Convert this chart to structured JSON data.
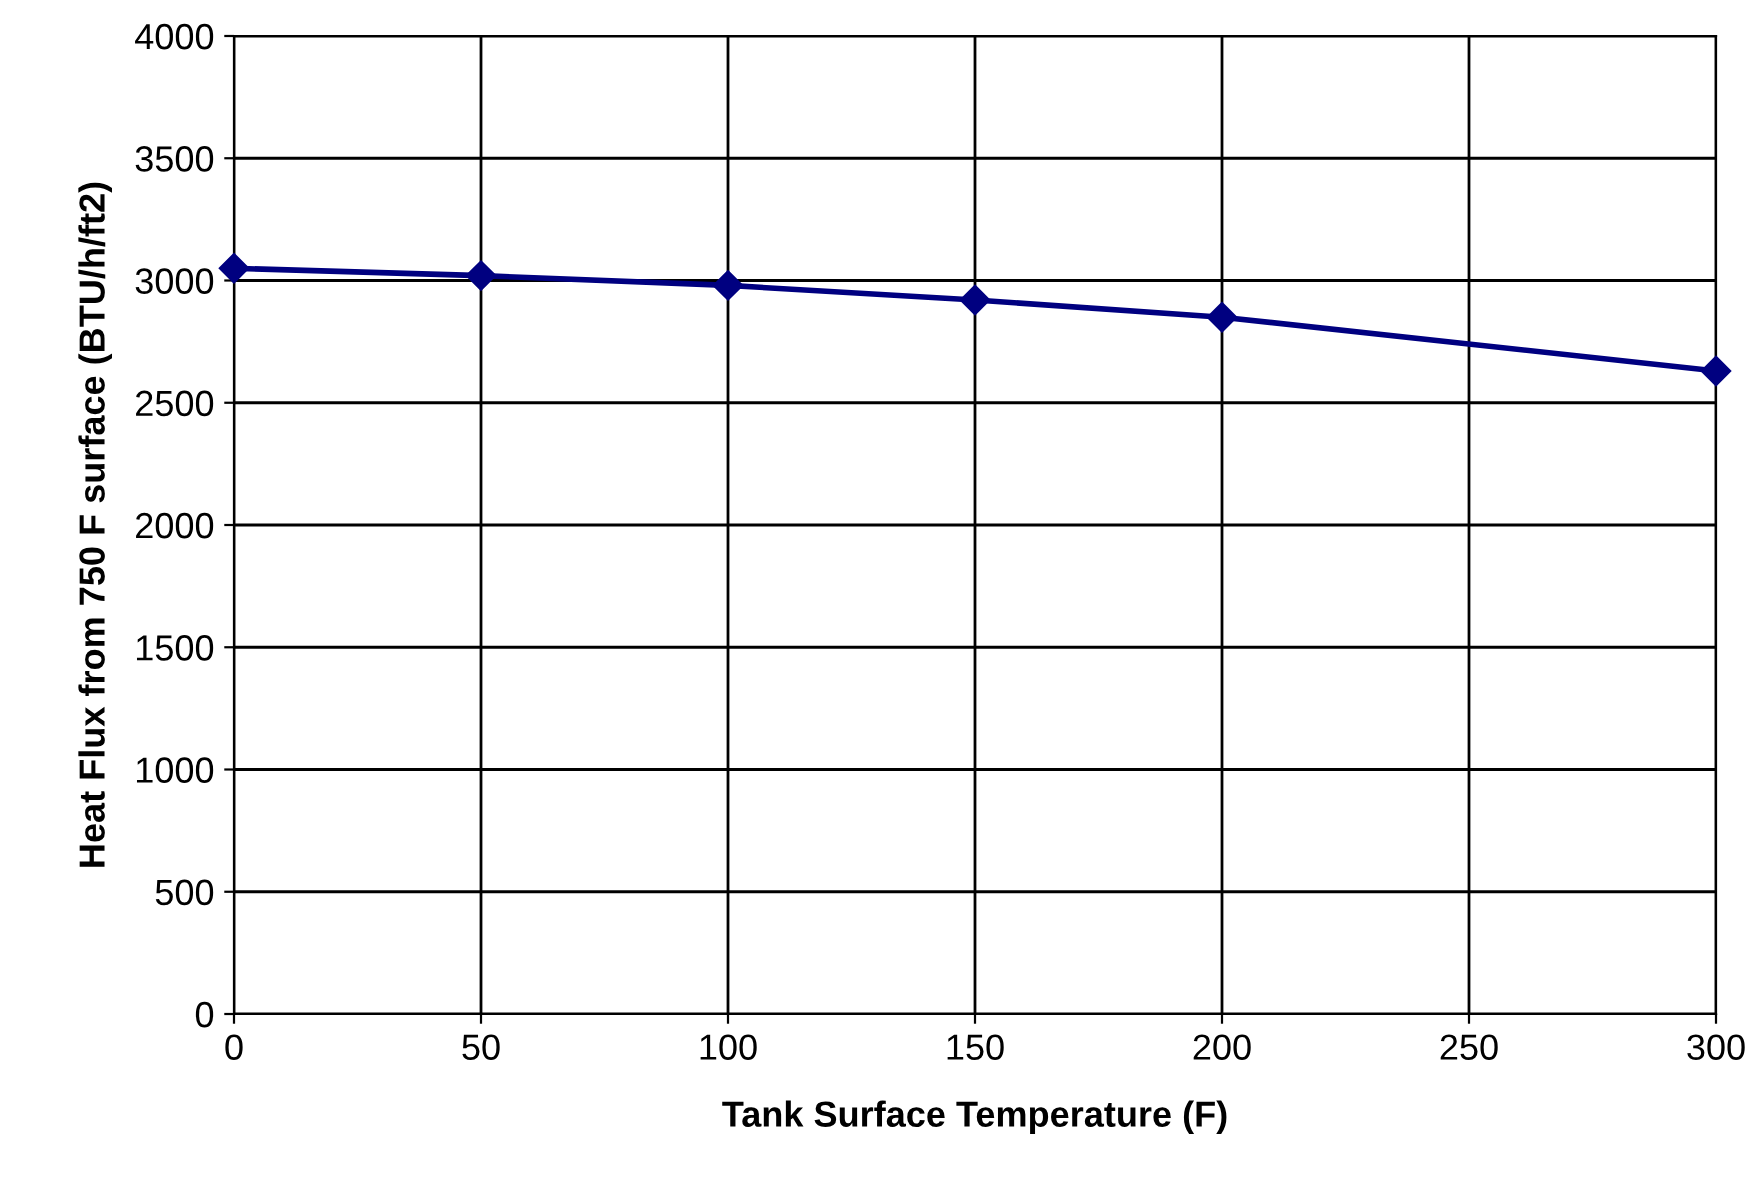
{
  "chart_data": {
    "type": "line",
    "xlabel": "Tank Surface Temperature (F)",
    "ylabel": "Heat Flux from 750 F surface (BTU/h/ft2)",
    "x": [
      0,
      50,
      100,
      150,
      200,
      300
    ],
    "series": [
      {
        "color": "#000080",
        "values": [
          3050,
          3020,
          2980,
          2920,
          2850,
          2630
        ]
      }
    ],
    "xlim": [
      0,
      300
    ],
    "xticks": [
      0,
      50,
      100,
      150,
      200,
      250,
      300
    ],
    "ylim": [
      0,
      4000
    ],
    "yticks": [
      0,
      500,
      1000,
      1500,
      2000,
      2500,
      3000,
      3500,
      4000
    ],
    "grid": true,
    "marker": "diamond",
    "line_style": "solid"
  }
}
